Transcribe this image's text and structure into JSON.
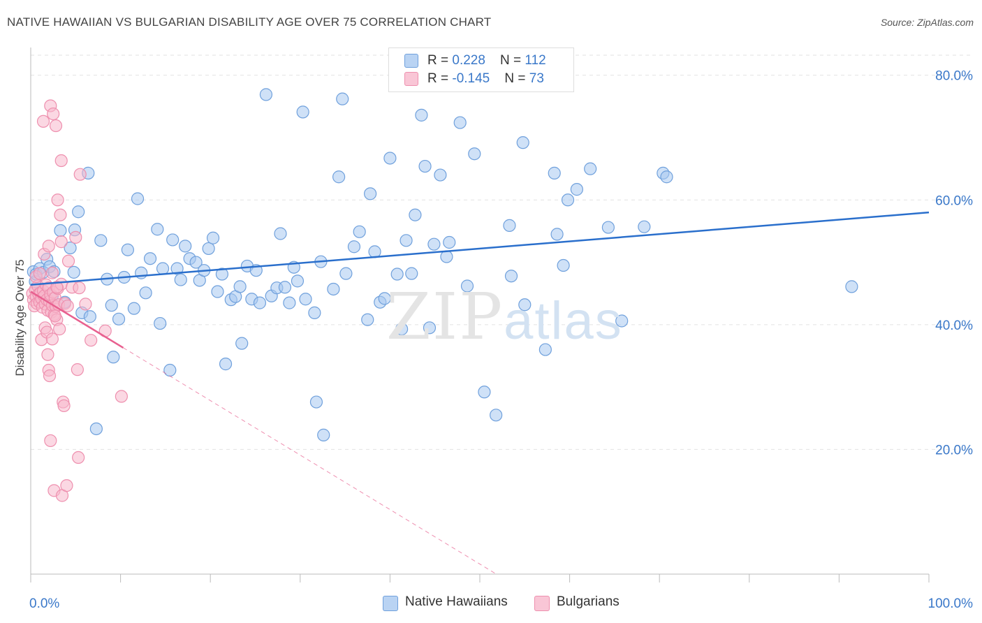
{
  "header": {
    "title": "NATIVE HAWAIIAN VS BULGARIAN DISABILITY AGE OVER 75 CORRELATION CHART",
    "source": "Source: ZipAtlas.com"
  },
  "legend": {
    "rows": [
      {
        "r_label": "R = ",
        "r_value": "0.228",
        "n_label": "N = ",
        "n_value": "112"
      },
      {
        "r_label": "R = ",
        "r_value": "-0.145",
        "n_label": "N = ",
        "n_value": "73"
      }
    ],
    "series": [
      "Native Hawaiians",
      "Bulgarians"
    ]
  },
  "watermark": {
    "zip": "ZIP",
    "atlas": "atlas"
  },
  "colors": {
    "blue_fill": "#a8c8f0",
    "blue_stroke": "#6fa0dc",
    "blue_line": "#2a6fcc",
    "pink_fill": "#f7b8cc",
    "pink_stroke": "#ee8fae",
    "pink_line": "#e8608f",
    "tick_text": "#3a78c9",
    "grid": "#e2e2e2"
  },
  "chart_data": {
    "type": "scatter",
    "title": "NATIVE HAWAIIAN VS BULGARIAN DISABILITY AGE OVER 75 CORRELATION CHART",
    "xlabel": "",
    "ylabel": "Disability Age Over 75",
    "xlim": [
      0,
      100
    ],
    "ylim": [
      0,
      84
    ],
    "x_tick_labels": [
      "0.0%",
      "100.0%"
    ],
    "y_ticks": [
      20,
      40,
      60,
      80
    ],
    "y_tick_labels": [
      "20.0%",
      "40.0%",
      "60.0%",
      "80.0%"
    ],
    "grid": true,
    "legend_position": "top-center",
    "series": [
      {
        "name": "Native Hawaiians",
        "R": 0.228,
        "N": 112,
        "trend": {
          "x0": 0,
          "y0": 46.4,
          "x1": 100,
          "y1": 58.0,
          "style": "solid"
        },
        "points": [
          [
            0.3,
            48.5
          ],
          [
            0.5,
            46.9
          ],
          [
            0.6,
            48.1
          ],
          [
            1.0,
            49.0
          ],
          [
            1.4,
            48.4
          ],
          [
            1.8,
            50.5
          ],
          [
            2.1,
            49.3
          ],
          [
            2.4,
            44.6
          ],
          [
            2.6,
            48.5
          ],
          [
            3.3,
            55.1
          ],
          [
            3.8,
            43.6
          ],
          [
            4.4,
            52.3
          ],
          [
            4.8,
            48.4
          ],
          [
            4.9,
            55.2
          ],
          [
            5.3,
            58.1
          ],
          [
            5.7,
            41.9
          ],
          [
            6.4,
            64.3
          ],
          [
            6.6,
            41.3
          ],
          [
            7.3,
            23.3
          ],
          [
            7.8,
            53.5
          ],
          [
            8.5,
            47.3
          ],
          [
            9.0,
            43.1
          ],
          [
            9.2,
            34.8
          ],
          [
            9.8,
            40.9
          ],
          [
            10.4,
            47.6
          ],
          [
            10.8,
            52.0
          ],
          [
            11.5,
            42.6
          ],
          [
            11.9,
            60.2
          ],
          [
            12.3,
            48.3
          ],
          [
            12.8,
            45.1
          ],
          [
            13.3,
            50.6
          ],
          [
            14.1,
            55.3
          ],
          [
            14.4,
            40.2
          ],
          [
            14.7,
            49.0
          ],
          [
            15.5,
            32.7
          ],
          [
            15.8,
            53.6
          ],
          [
            16.3,
            49.0
          ],
          [
            16.7,
            47.2
          ],
          [
            17.2,
            52.6
          ],
          [
            17.7,
            50.6
          ],
          [
            18.4,
            50.0
          ],
          [
            18.8,
            47.1
          ],
          [
            19.3,
            48.7
          ],
          [
            19.8,
            52.2
          ],
          [
            20.3,
            53.9
          ],
          [
            20.8,
            45.3
          ],
          [
            21.3,
            48.1
          ],
          [
            21.7,
            33.7
          ],
          [
            22.3,
            44.0
          ],
          [
            22.8,
            44.5
          ],
          [
            23.3,
            46.1
          ],
          [
            23.5,
            37.0
          ],
          [
            24.1,
            49.4
          ],
          [
            24.6,
            44.1
          ],
          [
            25.1,
            48.7
          ],
          [
            25.5,
            43.5
          ],
          [
            26.2,
            76.9
          ],
          [
            26.8,
            44.6
          ],
          [
            27.4,
            45.9
          ],
          [
            27.8,
            54.6
          ],
          [
            28.3,
            46.0
          ],
          [
            28.8,
            43.5
          ],
          [
            29.3,
            49.2
          ],
          [
            29.7,
            47.0
          ],
          [
            30.3,
            74.1
          ],
          [
            30.6,
            44.1
          ],
          [
            31.6,
            41.9
          ],
          [
            31.8,
            27.6
          ],
          [
            32.3,
            50.1
          ],
          [
            32.6,
            22.3
          ],
          [
            33.7,
            45.7
          ],
          [
            34.3,
            63.7
          ],
          [
            34.7,
            76.2
          ],
          [
            35.1,
            48.2
          ],
          [
            36.0,
            52.5
          ],
          [
            36.6,
            54.9
          ],
          [
            37.5,
            40.8
          ],
          [
            37.8,
            61.0
          ],
          [
            38.3,
            51.7
          ],
          [
            38.9,
            43.6
          ],
          [
            39.4,
            44.2
          ],
          [
            40.0,
            66.7
          ],
          [
            40.8,
            48.1
          ],
          [
            41.3,
            39.3
          ],
          [
            41.8,
            53.5
          ],
          [
            42.4,
            48.2
          ],
          [
            42.8,
            57.6
          ],
          [
            43.5,
            73.6
          ],
          [
            43.9,
            65.4
          ],
          [
            44.4,
            39.5
          ],
          [
            44.9,
            52.9
          ],
          [
            45.6,
            64.0
          ],
          [
            46.3,
            50.9
          ],
          [
            46.6,
            53.2
          ],
          [
            47.8,
            72.4
          ],
          [
            48.6,
            46.2
          ],
          [
            49.4,
            67.4
          ],
          [
            50.5,
            29.2
          ],
          [
            51.8,
            25.5
          ],
          [
            53.3,
            55.9
          ],
          [
            53.5,
            47.8
          ],
          [
            54.8,
            69.2
          ],
          [
            55.0,
            43.2
          ],
          [
            57.3,
            36.0
          ],
          [
            58.3,
            64.3
          ],
          [
            58.6,
            54.5
          ],
          [
            59.3,
            49.5
          ],
          [
            59.8,
            60.0
          ],
          [
            60.8,
            61.7
          ],
          [
            62.3,
            65.0
          ],
          [
            64.3,
            55.6
          ],
          [
            65.8,
            40.6
          ],
          [
            68.3,
            55.7
          ],
          [
            70.4,
            64.3
          ],
          [
            70.8,
            63.7
          ],
          [
            91.4,
            46.1
          ]
        ]
      },
      {
        "name": "Bulgarians",
        "R": -0.145,
        "N": 73,
        "trend": {
          "x0": 0,
          "y0": 45.3,
          "x1": 10.3,
          "y1": 36.3,
          "x_dash_end": 100,
          "style": "solid-then-dashed"
        },
        "points": [
          [
            0.2,
            45.0
          ],
          [
            0.3,
            44.0
          ],
          [
            0.4,
            43.0
          ],
          [
            0.5,
            45.6
          ],
          [
            0.6,
            44.5
          ],
          [
            0.7,
            43.4
          ],
          [
            0.8,
            46.2
          ],
          [
            0.9,
            44.9
          ],
          [
            1.0,
            43.6
          ],
          [
            1.1,
            45.1
          ],
          [
            1.2,
            44.2
          ],
          [
            1.3,
            42.8
          ],
          [
            1.4,
            45.4
          ],
          [
            1.5,
            44.6
          ],
          [
            1.6,
            43.3
          ],
          [
            1.7,
            46.4
          ],
          [
            1.8,
            44.0
          ],
          [
            1.9,
            42.3
          ],
          [
            2.0,
            45.9
          ],
          [
            2.1,
            43.7
          ],
          [
            2.2,
            44.8
          ],
          [
            2.3,
            42.0
          ],
          [
            2.4,
            43.1
          ],
          [
            2.5,
            45.2
          ],
          [
            2.6,
            41.6
          ],
          [
            2.7,
            44.3
          ],
          [
            2.8,
            42.9
          ],
          [
            2.9,
            40.8
          ],
          [
            3.0,
            45.8
          ],
          [
            3.1,
            43.2
          ],
          [
            0.6,
            47.7
          ],
          [
            1.0,
            48.2
          ],
          [
            1.5,
            51.3
          ],
          [
            2.0,
            52.6
          ],
          [
            2.4,
            48.3
          ],
          [
            3.4,
            46.5
          ],
          [
            3.8,
            43.4
          ],
          [
            4.2,
            50.2
          ],
          [
            4.6,
            46.0
          ],
          [
            5.0,
            54.0
          ],
          [
            5.4,
            45.9
          ],
          [
            1.2,
            37.6
          ],
          [
            1.6,
            39.5
          ],
          [
            1.8,
            38.8
          ],
          [
            1.9,
            35.2
          ],
          [
            2.0,
            32.7
          ],
          [
            2.1,
            31.8
          ],
          [
            2.4,
            37.7
          ],
          [
            2.7,
            41.4
          ],
          [
            3.2,
            39.3
          ],
          [
            3.6,
            27.6
          ],
          [
            3.7,
            27.0
          ],
          [
            4.1,
            43.0
          ],
          [
            5.2,
            32.8
          ],
          [
            6.1,
            43.3
          ],
          [
            6.7,
            37.5
          ],
          [
            8.3,
            39.0
          ],
          [
            10.1,
            28.5
          ],
          [
            2.2,
            21.4
          ],
          [
            5.3,
            18.7
          ],
          [
            2.6,
            13.4
          ],
          [
            3.5,
            12.6
          ],
          [
            4.0,
            14.2
          ],
          [
            1.4,
            72.6
          ],
          [
            2.2,
            75.1
          ],
          [
            2.5,
            73.8
          ],
          [
            2.8,
            71.9
          ],
          [
            3.4,
            66.3
          ],
          [
            5.5,
            64.1
          ],
          [
            3.0,
            60.0
          ],
          [
            3.3,
            57.6
          ],
          [
            3.4,
            53.3
          ],
          [
            2.9,
            46.0
          ]
        ]
      }
    ]
  }
}
